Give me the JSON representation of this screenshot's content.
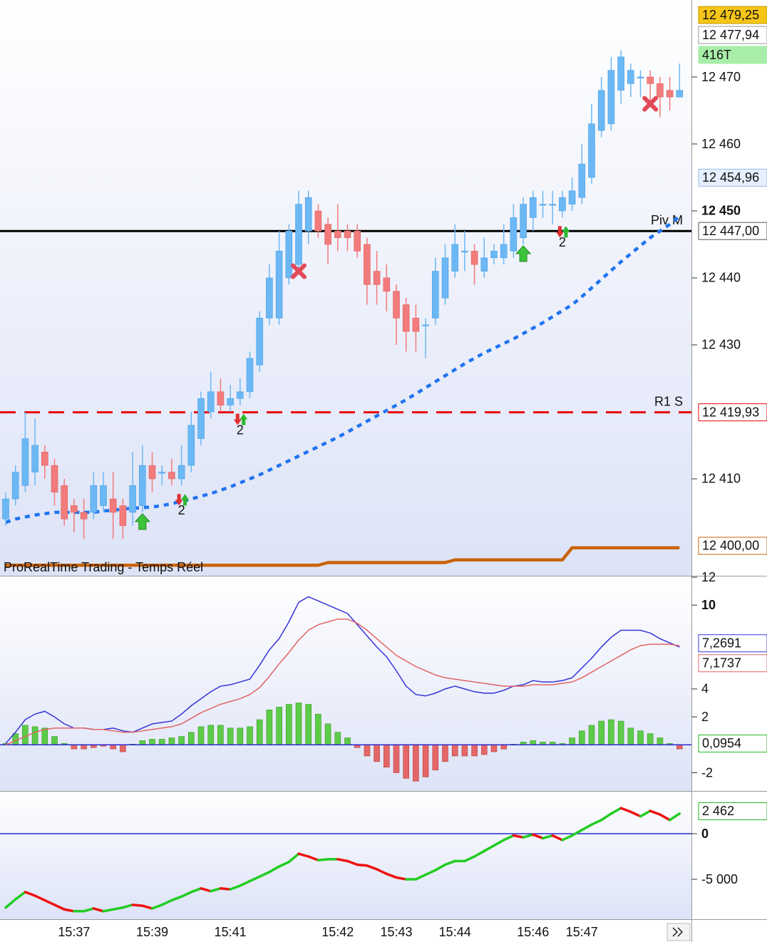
{
  "chart_data": [
    {
      "type": "candlestick",
      "watermark": "ProRealTime Trading - Temps Réel",
      "categories": [
        null,
        null,
        null,
        null,
        null,
        null,
        null,
        "15:37",
        null,
        null,
        null,
        null,
        null,
        null,
        null,
        "15:39",
        null,
        null,
        null,
        null,
        null,
        null,
        null,
        "15:41",
        null,
        null,
        null,
        null,
        null,
        null,
        null,
        null,
        null,
        null,
        "15:42",
        null,
        null,
        null,
        null,
        null,
        "15:43",
        null,
        null,
        null,
        null,
        null,
        "15:44",
        null,
        null,
        null,
        null,
        null,
        null,
        null,
        "15:46",
        null,
        null,
        null,
        null,
        "15:47",
        null,
        null,
        null,
        null,
        null,
        null,
        null,
        null,
        null,
        null
      ],
      "open": [
        12404,
        12407,
        12409,
        12411,
        12414,
        12412,
        12409,
        12406,
        12405,
        12405,
        12406,
        12407,
        12406,
        12405,
        12406,
        12412,
        12411,
        12411,
        12410,
        12412,
        12416,
        12420,
        12423,
        12421,
        12422,
        12423,
        12427,
        12434,
        12434,
        12440,
        12442,
        12447,
        12450,
        12448,
        12447,
        12447,
        12447,
        12445,
        12441,
        12440,
        12438,
        12436,
        12434,
        12433,
        12434,
        12437,
        12441,
        12444,
        12444,
        12441,
        12443,
        12443,
        12444,
        12446,
        12449,
        12451,
        12451,
        12450,
        12451,
        12452,
        12455,
        12462,
        12463,
        12468,
        12469,
        12470,
        12470,
        12469,
        12468,
        12467
      ],
      "high": [
        12408,
        12412,
        12420,
        12419,
        12415,
        12413,
        12410,
        12407,
        12407,
        12411,
        12411,
        12411,
        12407,
        12414,
        12415,
        12414,
        12412,
        12413,
        12415,
        12420,
        12423,
        12426,
        12425,
        12424,
        12425,
        12429,
        12435,
        12442,
        12447,
        12448,
        12453,
        12453,
        12451,
        12449,
        12451,
        12448,
        12448,
        12446,
        12444,
        12442,
        12439,
        12437,
        12436,
        12434,
        12443,
        12445,
        12448,
        12447,
        12445,
        12446,
        12445,
        12448,
        12451,
        12452,
        12453,
        12453,
        12453,
        12453,
        12455,
        12460,
        12466,
        12470,
        12473,
        12474,
        12472,
        12471,
        12471,
        12470,
        12470,
        12472
      ],
      "low": [
        12403,
        12406,
        12408,
        12409,
        12410,
        12406,
        12403,
        12402,
        12401,
        12404,
        12405,
        12401,
        12401,
        12403,
        12405,
        12408,
        12409,
        12409,
        12409,
        12411,
        12415,
        12419,
        12420,
        12420,
        12421,
        12422,
        12426,
        12433,
        12433,
        12439,
        12441,
        12445,
        12446,
        12442,
        12444,
        12444,
        12443,
        12436,
        12436,
        12435,
        12430,
        12429,
        12429,
        12428,
        12433,
        12436,
        12440,
        12441,
        12439,
        12440,
        12442,
        12442,
        12443,
        12445,
        12447,
        12449,
        12448,
        12449,
        12450,
        12451,
        12454,
        12461,
        12462,
        12466,
        12467,
        12467,
        12466,
        12464,
        12465,
        12467
      ],
      "close": [
        12407,
        12411,
        12416,
        12415,
        12412,
        12408,
        12404,
        12405,
        12404,
        12409,
        12409,
        12405,
        12403,
        12409,
        12412,
        12410,
        12411,
        12410,
        12412,
        12418,
        12422,
        12423,
        12421,
        12422,
        12423,
        12428,
        12434,
        12440,
        12444,
        12447,
        12451,
        12452,
        12447,
        12445,
        12446,
        12446,
        12444,
        12439,
        12439,
        12438,
        12434,
        12432,
        12432,
        12433,
        12441,
        12443,
        12445,
        12444,
        12442,
        12443,
        12444,
        12445,
        12449,
        12451,
        12452,
        12451,
        12451,
        12452,
        12453,
        12457,
        12463,
        12468,
        12471,
        12473,
        12471,
        12470,
        12469,
        12467,
        12467,
        12468
      ],
      "up_color": "#6cb8f4",
      "down_color": "#f27b7b",
      "lines": [
        {
          "color": "#1f74f0",
          "style": "dotted",
          "values": [
            12403.5,
            12404,
            12404.3,
            12404.6,
            12404.8,
            12405,
            12405,
            12405,
            12405,
            12405,
            12405.2,
            12405.3,
            12405.5,
            12405.6,
            12405.7,
            12405.8,
            12406,
            12406.3,
            12406.6,
            12407,
            12407.4,
            12407.8,
            12408.3,
            12408.8,
            12409.4,
            12410,
            12410.6,
            12411.3,
            12412,
            12412.7,
            12413.4,
            12414.1,
            12414.8,
            12415.5,
            12416.2,
            12417,
            12417.8,
            12418.6,
            12419.4,
            12420.2,
            12421,
            12421.8,
            12422.7,
            12423.6,
            12424.5,
            12425.4,
            12426.3,
            12427.2,
            12428,
            12428.8,
            12429.5,
            12430.2,
            12430.9,
            12431.7,
            12432.5,
            12433.3,
            12434.2,
            12435.1,
            12436,
            12437.2,
            12438.5,
            12439.8,
            12441.1,
            12442.4,
            12443.6,
            12444.8,
            12446,
            12447,
            12448,
            12449.2
          ]
        },
        {
          "color": "#c8640a",
          "style": "solid",
          "values": [
            12397.1,
            12397.1,
            12397.1,
            12397.1,
            12397.1,
            12397.1,
            12397.1,
            12397.1,
            12397.1,
            12397.1,
            12397.1,
            12397.1,
            12397.1,
            12397.1,
            12397.1,
            12397.1,
            12397.1,
            12397.1,
            12397.1,
            12397.1,
            12397.1,
            12397.1,
            12397.1,
            12397.1,
            12397.1,
            12397.1,
            12397.1,
            12397.1,
            12397.1,
            12397.1,
            12397.1,
            12397.1,
            12397.1,
            12397.5,
            12397.5,
            12397.5,
            12397.5,
            12397.5,
            12397.5,
            12397.5,
            12397.5,
            12397.5,
            12397.5,
            12397.5,
            12397.5,
            12397.5,
            12397.9,
            12397.9,
            12397.9,
            12397.9,
            12397.9,
            12397.9,
            12397.9,
            12397.9,
            12397.9,
            12397.9,
            12397.9,
            12397.9,
            12399.7,
            12399.7,
            12399.7,
            12399.7,
            12399.7,
            12399.7,
            12399.7,
            12399.7,
            12399.7,
            12399.7,
            12399.7,
            12399.7
          ]
        }
      ],
      "levels": [
        {
          "label": "Piv M",
          "value": 12447,
          "color": "#000000",
          "style": "solid"
        },
        {
          "label": "R1 S",
          "value": 12419.93,
          "color": "#e8000b",
          "style": "dashed"
        }
      ],
      "signals": [
        {
          "kind": "up",
          "candle": 14
        },
        {
          "kind": "pair",
          "candle": 18,
          "label": "2"
        },
        {
          "kind": "pair",
          "candle": 24,
          "label": "2"
        },
        {
          "kind": "cross",
          "candle": 30
        },
        {
          "kind": "up",
          "candle": 53
        },
        {
          "kind": "pair",
          "candle": 57,
          "label": "2"
        },
        {
          "kind": "cross",
          "candle": 66
        }
      ],
      "ylim": [
        12395.53,
        12481.49
      ],
      "yticks": [
        {
          "value": 12470,
          "label": "12 470"
        },
        {
          "value": 12460,
          "label": "12 460"
        },
        {
          "value": 12450,
          "label": "12 450",
          "bold": true
        },
        {
          "value": 12440,
          "label": "12 440"
        },
        {
          "value": 12430,
          "label": "12 430"
        },
        {
          "value": 12410,
          "label": "12 410"
        }
      ],
      "markers": [
        {
          "label": "12 479,25",
          "value": 12479.25,
          "background": "#f5c518",
          "color": "#000000",
          "border": "#c79a00"
        },
        {
          "label": "12 477,94",
          "value": 12477.94,
          "background": "#ffffff",
          "color": "#000000",
          "border": "#999999"
        },
        {
          "label": "416T",
          "background": "#a8eea8",
          "color": "#000000",
          "border": "#a8eea8"
        },
        {
          "label": "12 454,96",
          "value": 12454.96,
          "background": "#e6efff",
          "color": "#1f74f0",
          "border": "#9bb8e8"
        },
        {
          "label": "12 447,00",
          "value": 12447,
          "background": "#ffffff",
          "color": "#000000",
          "border": "#555555"
        },
        {
          "label": "12 419,93",
          "value": 12419.93,
          "background": "#ffffff",
          "color": "#e8000b",
          "border": "#e8000b"
        },
        {
          "label": "12 400,00",
          "value": 12400,
          "background": "#ffffff",
          "color": "#c8640a",
          "border": "#c8640a"
        }
      ]
    },
    {
      "type": "macd",
      "series": [
        {
          "color": "#3434d8",
          "values": [
            0.1,
            0.9,
            1.8,
            2.2,
            2.4,
            2.0,
            1.5,
            1.2,
            1.2,
            1.1,
            1.1,
            1.2,
            1.0,
            0.9,
            1.2,
            1.5,
            1.6,
            1.7,
            2.2,
            2.8,
            3.3,
            3.8,
            4.2,
            4.3,
            4.5,
            4.7,
            5.7,
            6.8,
            7.6,
            8.8,
            10.2,
            10.6,
            10.3,
            10.0,
            9.7,
            9.4,
            8.6,
            7.8,
            7.0,
            6.3,
            5.3,
            4.2,
            3.6,
            3.5,
            3.7,
            4.0,
            4.2,
            4.0,
            3.8,
            3.7,
            3.7,
            3.9,
            4.2,
            4.3,
            4.6,
            4.5,
            4.5,
            4.6,
            4.8,
            5.5,
            6.2,
            7.0,
            7.7,
            8.2,
            8.2,
            8.2,
            8.0,
            7.6,
            7.3,
            7.0
          ]
        },
        {
          "color": "#e06464",
          "values": [
            0.0,
            0.3,
            0.6,
            0.9,
            1.1,
            1.2,
            1.2,
            1.2,
            1.2,
            1.1,
            1.1,
            1.0,
            0.9,
            0.9,
            1.0,
            1.1,
            1.2,
            1.3,
            1.5,
            1.9,
            2.3,
            2.6,
            2.9,
            3.1,
            3.3,
            3.6,
            4.1,
            4.9,
            5.8,
            6.6,
            7.5,
            8.2,
            8.6,
            8.8,
            9.0,
            9.0,
            8.7,
            8.2,
            7.6,
            7.0,
            6.4,
            6.0,
            5.6,
            5.3,
            5.0,
            4.8,
            4.7,
            4.6,
            4.5,
            4.4,
            4.3,
            4.2,
            4.2,
            4.2,
            4.3,
            4.3,
            4.3,
            4.4,
            4.5,
            4.8,
            5.2,
            5.6,
            6.0,
            6.4,
            6.8,
            7.1,
            7.2,
            7.2,
            7.2,
            7.1
          ]
        }
      ],
      "histogram": {
        "up_color": "#5ccc48",
        "down_color": "#e46666",
        "values": [
          0.1,
          0.8,
          1.4,
          1.3,
          1.2,
          0.6,
          0.1,
          -0.3,
          -0.3,
          -0.2,
          -0.1,
          -0.3,
          -0.5,
          0.05,
          0.3,
          0.4,
          0.4,
          0.5,
          0.6,
          0.9,
          1.3,
          1.4,
          1.4,
          1.2,
          1.2,
          1.3,
          1.8,
          2.5,
          2.7,
          2.9,
          3.0,
          2.9,
          2.2,
          1.5,
          0.9,
          0.5,
          -0.2,
          -0.8,
          -1.2,
          -1.6,
          -2.0,
          -2.4,
          -2.6,
          -2.3,
          -1.8,
          -1.2,
          -0.8,
          -0.8,
          -0.8,
          -0.7,
          -0.5,
          -0.3,
          0.05,
          0.2,
          0.3,
          0.2,
          0.2,
          0.1,
          0.5,
          1.0,
          1.4,
          1.7,
          1.8,
          1.7,
          1.2,
          1.0,
          0.8,
          0.5,
          0.1,
          -0.3
        ]
      },
      "zero_color": "#2a2ad0",
      "ylim": [
        -3.3,
        12
      ],
      "yticks": [
        -2,
        2,
        4,
        {
          "value": 10,
          "label": "10",
          "bold": true
        },
        12
      ],
      "markers": [
        {
          "label": "7,2691",
          "value": 7.2691,
          "background": "#ffffff",
          "color": "#3434d8",
          "border": "#3434d8"
        },
        {
          "label": "7,1737",
          "value": 7.1737,
          "background": "#ffffff",
          "color": "#e06464",
          "border": "#e06464"
        },
        {
          "label": "0,0954",
          "value": 0.0954,
          "background": "#ffffff",
          "color": "#22b822",
          "border": "#22b822"
        }
      ]
    },
    {
      "type": "line",
      "values": [
        -8100,
        -7200,
        -6400,
        -6800,
        -7300,
        -7800,
        -8300,
        -8500,
        -8500,
        -8200,
        -8500,
        -8300,
        -8100,
        -7800,
        -7900,
        -8200,
        -7800,
        -7300,
        -6900,
        -6400,
        -6000,
        -6300,
        -6000,
        -6100,
        -5700,
        -5200,
        -4700,
        -4200,
        -3600,
        -3100,
        -2200,
        -2500,
        -2900,
        -2800,
        -2800,
        -3000,
        -3400,
        -3500,
        -3900,
        -4400,
        -4800,
        -5000,
        -5000,
        -4500,
        -4000,
        -3400,
        -3000,
        -3000,
        -2500,
        -1900,
        -1300,
        -700,
        -200,
        -400,
        -100,
        -500,
        -200,
        -700,
        -200,
        400,
        1000,
        1500,
        2200,
        2800,
        2400,
        1900,
        2500,
        2100,
        1500,
        2200
      ],
      "up_color": "#22cc22",
      "down_color": "#ee1111",
      "zero_color": "#2a2ad0",
      "ylim": [
        -9375,
        4687.5
      ],
      "yticks": [
        {
          "value": 0,
          "label": "0",
          "bold": true
        },
        {
          "value": -5000,
          "label": "-5 000"
        }
      ],
      "markers": [
        {
          "label": "2 462",
          "value": 2462,
          "background": "#ffffff",
          "color": "#22b822",
          "border": "#22b822"
        }
      ]
    }
  ]
}
